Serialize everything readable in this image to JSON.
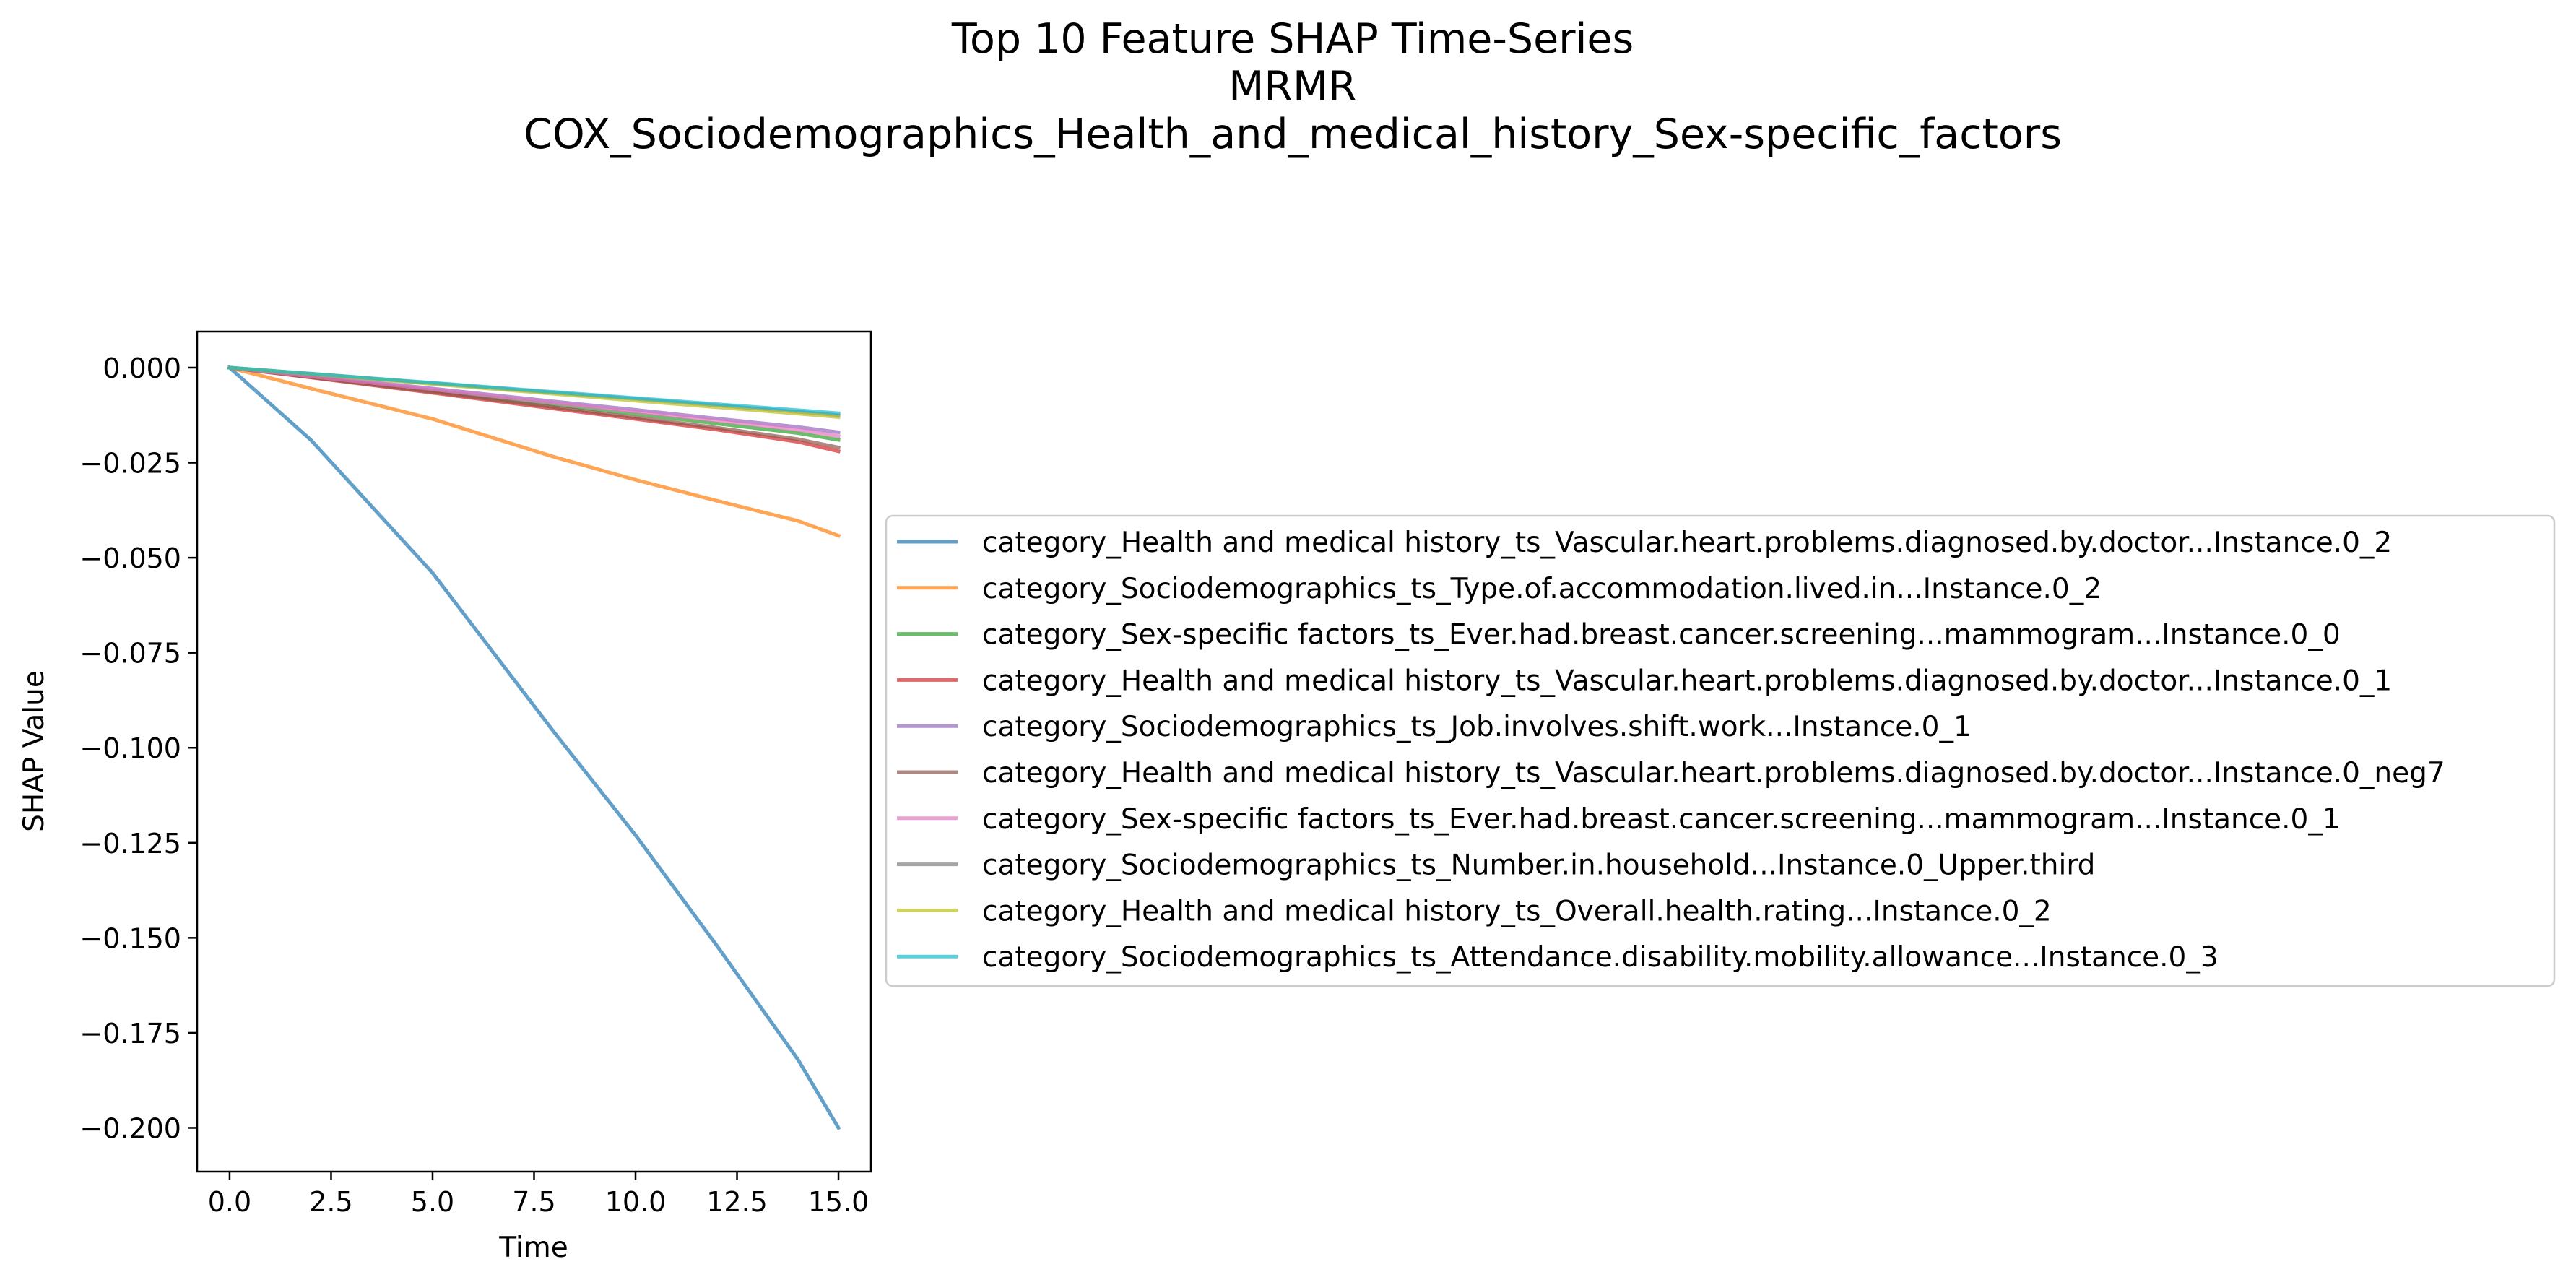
{
  "chart_data": {
    "type": "line",
    "title_lines": [
      "Top 10 Feature SHAP Time-Series",
      "MRMR",
      "COX_Sociodemographics_Health_and_medical_history_Sex-specific_factors"
    ],
    "xlabel": "Time",
    "ylabel": "SHAP Value",
    "xlim": [
      -0.8,
      15.8
    ],
    "ylim": [
      -0.2115,
      0.0095
    ],
    "xticks": [
      0.0,
      2.5,
      5.0,
      7.5,
      10.0,
      12.5,
      15.0
    ],
    "xtick_labels": [
      "0.0",
      "2.5",
      "5.0",
      "7.5",
      "10.0",
      "12.5",
      "15.0"
    ],
    "yticks": [
      0.0,
      -0.025,
      -0.05,
      -0.075,
      -0.1,
      -0.125,
      -0.15,
      -0.175,
      -0.2
    ],
    "ytick_labels": [
      "0.000",
      "−0.025",
      "−0.050",
      "−0.075",
      "−0.100",
      "−0.125",
      "−0.150",
      "−0.175",
      "−0.200"
    ],
    "grid": false,
    "legend_position": "right",
    "x": [
      0,
      2,
      5,
      8,
      10,
      12,
      14,
      15
    ],
    "series": [
      {
        "name": "category_Health and medical history_ts_Vascular.heart.problems.diagnosed.by.doctor...Instance.0_2",
        "color": "#1f77b4",
        "values": [
          0.0,
          -0.019,
          -0.054,
          -0.096,
          -0.123,
          -0.152,
          -0.182,
          -0.2
        ]
      },
      {
        "name": "category_Sociodemographics_ts_Type.of.accommodation.lived.in...Instance.0_2",
        "color": "#ff7f0e",
        "values": [
          0.0,
          -0.0055,
          -0.0135,
          -0.0235,
          -0.0295,
          -0.035,
          -0.0403,
          -0.0442
        ]
      },
      {
        "name": "category_Sex-specific factors_ts_Ever.had.breast.cancer.screening...mammogram...Instance.0_0",
        "color": "#2ca02c",
        "values": [
          0.0,
          -0.0024,
          -0.006,
          -0.0098,
          -0.0122,
          -0.0147,
          -0.0172,
          -0.019
        ]
      },
      {
        "name": "category_Health and medical history_ts_Vascular.heart.problems.diagnosed.by.doctor...Instance.0_1",
        "color": "#d62728",
        "values": [
          0.0,
          -0.0026,
          -0.0066,
          -0.0108,
          -0.0135,
          -0.0163,
          -0.0195,
          -0.022
        ]
      },
      {
        "name": "category_Sociodemographics_ts_Job.involves.shift.work...Instance.0_1",
        "color": "#9467bd",
        "values": [
          0.0,
          -0.0022,
          -0.0055,
          -0.0089,
          -0.0111,
          -0.0134,
          -0.0156,
          -0.017
        ]
      },
      {
        "name": "category_Health and medical history_ts_Vascular.heart.problems.diagnosed.by.doctor...Instance.0_neg7",
        "color": "#8c564b",
        "values": [
          0.0,
          -0.0025,
          -0.0064,
          -0.0104,
          -0.0131,
          -0.0158,
          -0.0188,
          -0.021
        ]
      },
      {
        "name": "category_Sex-specific factors_ts_Ever.had.breast.cancer.screening...mammogram...Instance.0_1",
        "color": "#e377c2",
        "values": [
          0.0,
          -0.0023,
          -0.0057,
          -0.0093,
          -0.0116,
          -0.0139,
          -0.0163,
          -0.018
        ]
      },
      {
        "name": "category_Sociodemographics_ts_Number.in.household...Instance.0_Upper.third",
        "color": "#7f7f7f",
        "values": [
          0.0,
          -0.0016,
          -0.0041,
          -0.0066,
          -0.0082,
          -0.0099,
          -0.0116,
          -0.0125
        ]
      },
      {
        "name": "category_Health and medical history_ts_Overall.health.rating...Instance.0_2",
        "color": "#bcbd22",
        "values": [
          0.0,
          -0.0017,
          -0.0043,
          -0.0069,
          -0.0087,
          -0.0104,
          -0.0121,
          -0.013
        ]
      },
      {
        "name": "category_Sociodemographics_ts_Attendance.disability.mobility.allowance...Instance.0_3",
        "color": "#17becf",
        "values": [
          0.0,
          -0.0016,
          -0.004,
          -0.0064,
          -0.008,
          -0.0096,
          -0.0112,
          -0.012
        ]
      }
    ]
  }
}
